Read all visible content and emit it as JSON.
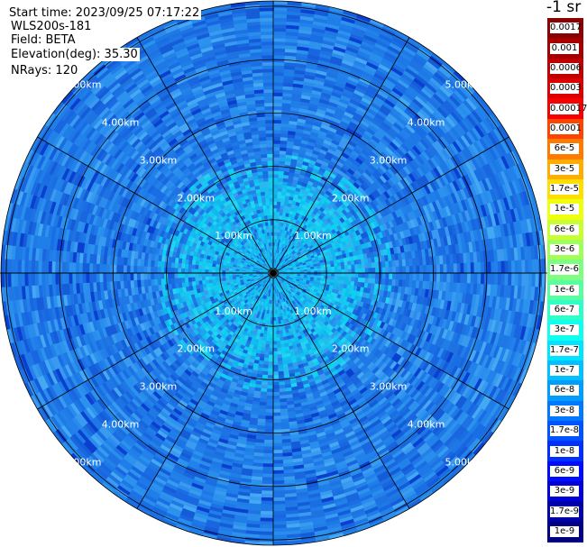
{
  "info": {
    "start_time": "Start time: 2023/09/25 07:17:22",
    "instrument": "WLS200s-181",
    "field": "Field: BETA",
    "elevation": "Elevation(deg): 35.30",
    "nrays": "NRays: 120"
  },
  "colorbar": {
    "unit_label": "-1 sr",
    "segments": [
      {
        "label": "0.0017",
        "color": "#8b0000"
      },
      {
        "label": "0.001",
        "color": "#a50000"
      },
      {
        "label": "0.0006",
        "color": "#c00000"
      },
      {
        "label": "0.0003",
        "color": "#dc0000"
      },
      {
        "label": "0.00017",
        "color": "#f70000"
      },
      {
        "label": "0.0001",
        "color": "#ff4400"
      },
      {
        "label": "6e-5",
        "color": "#ff7a00"
      },
      {
        "label": "3e-5",
        "color": "#ffad00"
      },
      {
        "label": "1.7e-5",
        "color": "#ffdf00"
      },
      {
        "label": "1e-5",
        "color": "#efff10"
      },
      {
        "label": "6e-6",
        "color": "#c8ff30"
      },
      {
        "label": "3e-6",
        "color": "#a0ff58"
      },
      {
        "label": "1.7e-6",
        "color": "#7fff7f"
      },
      {
        "label": "1e-6",
        "color": "#58ffa0"
      },
      {
        "label": "6e-7",
        "color": "#30ffc8"
      },
      {
        "label": "3e-7",
        "color": "#10ffee"
      },
      {
        "label": "1.7e-7",
        "color": "#00e4ff"
      },
      {
        "label": "1e-7",
        "color": "#00c0ff"
      },
      {
        "label": "6e-8",
        "color": "#009cff"
      },
      {
        "label": "3e-8",
        "color": "#0078ff"
      },
      {
        "label": "1.7e-8",
        "color": "#0054ff"
      },
      {
        "label": "1e-8",
        "color": "#0030ff"
      },
      {
        "label": "6e-9",
        "color": "#000cff"
      },
      {
        "label": "3e-9",
        "color": "#0000d8"
      },
      {
        "label": "1.7e-9",
        "color": "#0000a8"
      },
      {
        "label": "1e-9",
        "color": "#000080"
      }
    ]
  },
  "chart_data": {
    "type": "heatmap",
    "projection": "polar (PPI scan)",
    "field": "BETA",
    "elevation_deg": 35.3,
    "n_rays": 120,
    "range_rings_km": [
      1.0,
      2.0,
      3.0,
      4.0,
      5.0
    ],
    "ring_labels": [
      "1.00km",
      "2.00km",
      "3.00km",
      "4.00km",
      "5.00km"
    ],
    "max_range_km": 5.1,
    "azimuth_gridlines_deg": [
      0,
      30,
      60,
      90,
      120,
      150,
      180,
      210,
      240,
      270,
      300,
      330
    ],
    "dominant_color": "#1e7de8",
    "near_field_color": "#16c0ef",
    "approx_value_range": [
      "1e-8",
      "1.7e-7"
    ]
  }
}
